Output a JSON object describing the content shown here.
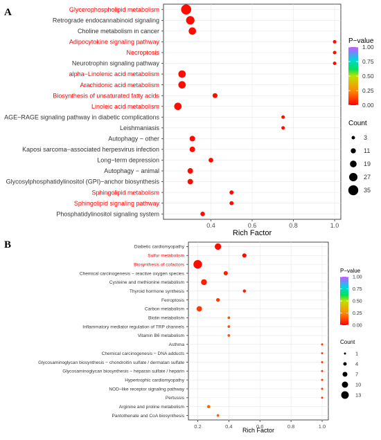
{
  "panels": [
    {
      "label": "A",
      "chart_data": {
        "type": "scatter",
        "title": "",
        "xlabel": "Rich Factor",
        "ylabel": "",
        "xlim": [
          0.17,
          1.03
        ],
        "x_ticks": [
          "0.4",
          "0.6",
          "0.8",
          "1.0"
        ],
        "highlight_color": "#ff0000",
        "default_label_color": "#333333",
        "points": [
          {
            "pathway": "Glycerophospholipid metabolism",
            "rich_factor": 0.28,
            "count": 35,
            "p_value": 0.02,
            "highlight": true
          },
          {
            "pathway": "Retrograde endocannabinoid signaling",
            "rich_factor": 0.3,
            "count": 27,
            "p_value": 0.02,
            "highlight": false
          },
          {
            "pathway": "Choline metabolism in cancer",
            "rich_factor": 0.31,
            "count": 22,
            "p_value": 0.02,
            "highlight": false
          },
          {
            "pathway": "Adipocytokine signaling pathway",
            "rich_factor": 1.0,
            "count": 3,
            "p_value": 0.02,
            "highlight": true
          },
          {
            "pathway": "Necroptosis",
            "rich_factor": 1.0,
            "count": 3,
            "p_value": 0.02,
            "highlight": true
          },
          {
            "pathway": "Neurotrophin signaling pathway",
            "rich_factor": 1.0,
            "count": 3,
            "p_value": 0.02,
            "highlight": false
          },
          {
            "pathway": "alpha−Linolenic acid metabolism",
            "rich_factor": 0.26,
            "count": 22,
            "p_value": 0.02,
            "highlight": true
          },
          {
            "pathway": "Arachidonic acid metabolism",
            "rich_factor": 0.26,
            "count": 22,
            "p_value": 0.02,
            "highlight": true
          },
          {
            "pathway": "Biosynthesis of unsaturated fatty acids",
            "rich_factor": 0.42,
            "count": 10,
            "p_value": 0.02,
            "highlight": true
          },
          {
            "pathway": "Linoleic acid metabolism",
            "rich_factor": 0.24,
            "count": 22,
            "p_value": 0.02,
            "highlight": true
          },
          {
            "pathway": "AGE−RAGE signaling pathway in diabetic complications",
            "rich_factor": 0.75,
            "count": 3,
            "p_value": 0.02,
            "highlight": false
          },
          {
            "pathway": "Leishmaniasis",
            "rich_factor": 0.75,
            "count": 3,
            "p_value": 0.02,
            "highlight": false
          },
          {
            "pathway": "Autophagy − other",
            "rich_factor": 0.31,
            "count": 13,
            "p_value": 0.02,
            "highlight": false
          },
          {
            "pathway": "Kaposi sarcoma−associated herpesvirus infection",
            "rich_factor": 0.31,
            "count": 13,
            "p_value": 0.02,
            "highlight": false
          },
          {
            "pathway": "Long−term depression",
            "rich_factor": 0.4,
            "count": 9,
            "p_value": 0.02,
            "highlight": false
          },
          {
            "pathway": "Autophagy − animal",
            "rich_factor": 0.3,
            "count": 13,
            "p_value": 0.02,
            "highlight": false
          },
          {
            "pathway": "Glycosylphosphatidylinositol (GPI)−anchor biosynthesis",
            "rich_factor": 0.3,
            "count": 13,
            "p_value": 0.02,
            "highlight": false
          },
          {
            "pathway": "Sphingolipid metabolism",
            "rich_factor": 0.5,
            "count": 6,
            "p_value": 0.02,
            "highlight": true
          },
          {
            "pathway": "Sphingolipid signaling pathway",
            "rich_factor": 0.5,
            "count": 6,
            "p_value": 0.02,
            "highlight": true
          },
          {
            "pathway": "Phosphatidylinositol signaling system",
            "rich_factor": 0.36,
            "count": 8,
            "p_value": 0.02,
            "highlight": false
          }
        ],
        "color_legend": {
          "title": "P−value",
          "ticks": [
            "1.00",
            "0.75",
            "0.50",
            "0.25",
            "0.00"
          ]
        },
        "size_legend": {
          "title": "Count",
          "counts": [
            3,
            11,
            19,
            27,
            35
          ],
          "labels": [
            "3",
            "11",
            "19",
            "27",
            "35"
          ]
        },
        "grid": true,
        "legend_position": "right"
      }
    },
    {
      "label": "B",
      "chart_data": {
        "type": "scatter",
        "title": "",
        "xlabel": "Rich Factor",
        "ylabel": "",
        "xlim": [
          0.14,
          1.04
        ],
        "x_ticks": [
          "0.2",
          "0.4",
          "0.6",
          "0.8",
          "1.0"
        ],
        "highlight_color": "#ff0000",
        "default_label_color": "#333333",
        "points": [
          {
            "pathway": "Diabetic cardiomyopathy",
            "rich_factor": 0.33,
            "count": 9,
            "p_value": 0.02,
            "highlight": false
          },
          {
            "pathway": "Sulfur metabolism",
            "rich_factor": 0.5,
            "count": 5,
            "p_value": 0.02,
            "highlight": true
          },
          {
            "pathway": "Biosynthesis of cofactors",
            "rich_factor": 0.2,
            "count": 13,
            "p_value": 0.02,
            "highlight": true
          },
          {
            "pathway": "Chemical carcinogenesis − reactive oxygen species",
            "rich_factor": 0.38,
            "count": 5,
            "p_value": 0.05,
            "highlight": false
          },
          {
            "pathway": "Cysteine and methionine metabolism",
            "rich_factor": 0.24,
            "count": 8,
            "p_value": 0.05,
            "highlight": false
          },
          {
            "pathway": "Thyroid hormone synthesis",
            "rich_factor": 0.5,
            "count": 3,
            "p_value": 0.05,
            "highlight": false
          },
          {
            "pathway": "Ferroptosis",
            "rich_factor": 0.33,
            "count": 4,
            "p_value": 0.1,
            "highlight": false
          },
          {
            "pathway": "Carbon metabolism",
            "rich_factor": 0.21,
            "count": 7,
            "p_value": 0.1,
            "highlight": false
          },
          {
            "pathway": "Biotin metabolism",
            "rich_factor": 0.4,
            "count": 2,
            "p_value": 0.15,
            "highlight": false
          },
          {
            "pathway": "Inflammatory mediator regulation of TRP channels",
            "rich_factor": 0.4,
            "count": 2,
            "p_value": 0.15,
            "highlight": false
          },
          {
            "pathway": "Vitamin B6 metabolism",
            "rich_factor": 0.4,
            "count": 2,
            "p_value": 0.15,
            "highlight": false
          },
          {
            "pathway": "Asthma",
            "rich_factor": 1.0,
            "count": 1,
            "p_value": 0.1,
            "highlight": false
          },
          {
            "pathway": "Chemical carcinogenesis − DNA adducts",
            "rich_factor": 1.0,
            "count": 1,
            "p_value": 0.1,
            "highlight": false
          },
          {
            "pathway": "Glycosaminoglycan biosynthesis − chondroitin sulfate / dermatan sulfate",
            "rich_factor": 1.0,
            "count": 1,
            "p_value": 0.1,
            "highlight": false
          },
          {
            "pathway": "Glycosaminoglycan biosynthesis − heparan sulfate / heparin",
            "rich_factor": 1.0,
            "count": 1,
            "p_value": 0.1,
            "highlight": false
          },
          {
            "pathway": "Hypertrophic cardiomyopathy",
            "rich_factor": 1.0,
            "count": 1,
            "p_value": 0.1,
            "highlight": false
          },
          {
            "pathway": "NOD−like receptor signaling pathway",
            "rich_factor": 1.0,
            "count": 1,
            "p_value": 0.1,
            "highlight": false
          },
          {
            "pathway": "Pertussis",
            "rich_factor": 1.0,
            "count": 1,
            "p_value": 0.1,
            "highlight": false
          },
          {
            "pathway": "Arginine and proline metabolism",
            "rich_factor": 0.27,
            "count": 3,
            "p_value": 0.18,
            "highlight": false
          },
          {
            "pathway": "Pantothenate and CoA biosynthesis",
            "rich_factor": 0.33,
            "count": 2,
            "p_value": 0.18,
            "highlight": false
          }
        ],
        "color_legend": {
          "title": "P−value",
          "ticks": [
            "1.00",
            "0.75",
            "0.50",
            "0.25",
            "0.00"
          ]
        },
        "size_legend": {
          "title": "Count",
          "counts": [
            1,
            4,
            7,
            10,
            13
          ],
          "labels": [
            "1",
            "4",
            "7",
            "10",
            "13"
          ]
        },
        "grid": true,
        "legend_position": "right"
      }
    }
  ]
}
